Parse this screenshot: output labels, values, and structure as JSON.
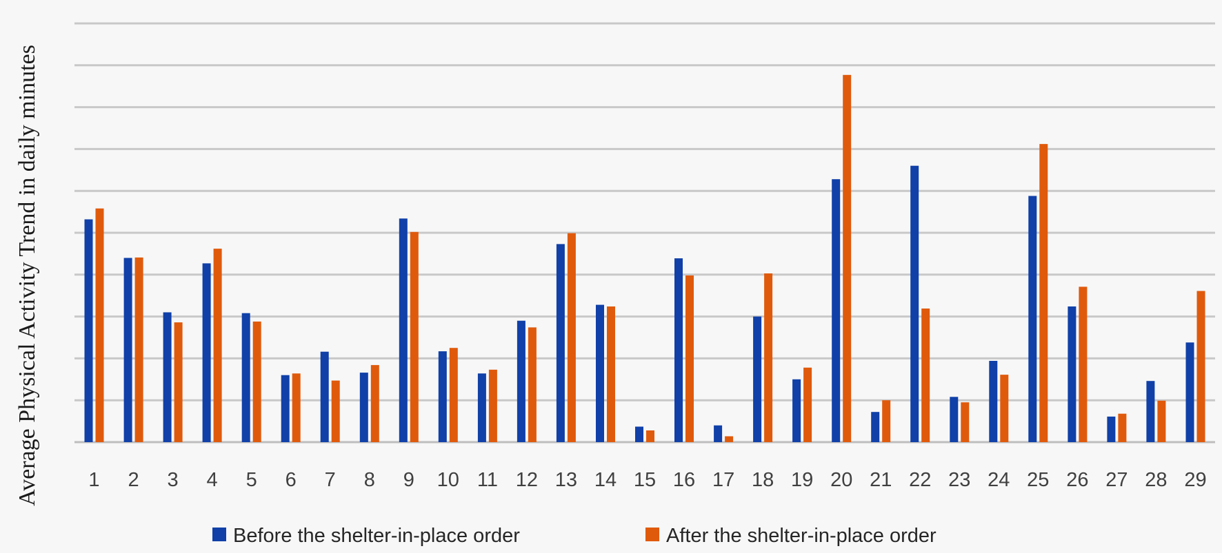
{
  "chart_data": {
    "type": "bar",
    "title": "",
    "xlabel": "",
    "ylabel": "Average Physical Activity Trend in daily minutes",
    "ylim": [
      0,
      100
    ],
    "grid": true,
    "legend_position": "bottom",
    "categories": [
      "1",
      "2",
      "3",
      "4",
      "5",
      "6",
      "7",
      "8",
      "9",
      "10",
      "11",
      "12",
      "13",
      "14",
      "15",
      "16",
      "17",
      "18",
      "19",
      "20",
      "21",
      "22",
      "23",
      "24",
      "25",
      "26",
      "27",
      "28",
      "29"
    ],
    "series": [
      {
        "name": "Before the shelter-in-place order",
        "color": "#1040a8",
        "values": [
          53.2,
          44.0,
          31.0,
          42.7,
          30.8,
          16.0,
          21.6,
          16.6,
          53.4,
          21.7,
          16.4,
          29.0,
          47.3,
          32.8,
          3.7,
          43.9,
          4.0,
          30.0,
          15.0,
          62.8,
          7.2,
          66.0,
          10.8,
          19.4,
          58.8,
          32.4,
          6.1,
          14.6,
          23.8
        ]
      },
      {
        "name": "After the shelter-in-place order",
        "color": "#e05a0c",
        "values": [
          55.8,
          44.1,
          28.6,
          46.2,
          28.8,
          16.4,
          14.7,
          18.4,
          50.2,
          22.5,
          17.3,
          27.4,
          49.9,
          32.4,
          2.8,
          39.8,
          1.4,
          40.3,
          17.8,
          87.7,
          10.0,
          31.9,
          9.5,
          16.1,
          71.2,
          37.1,
          6.8,
          9.9,
          36.1
        ]
      }
    ]
  }
}
